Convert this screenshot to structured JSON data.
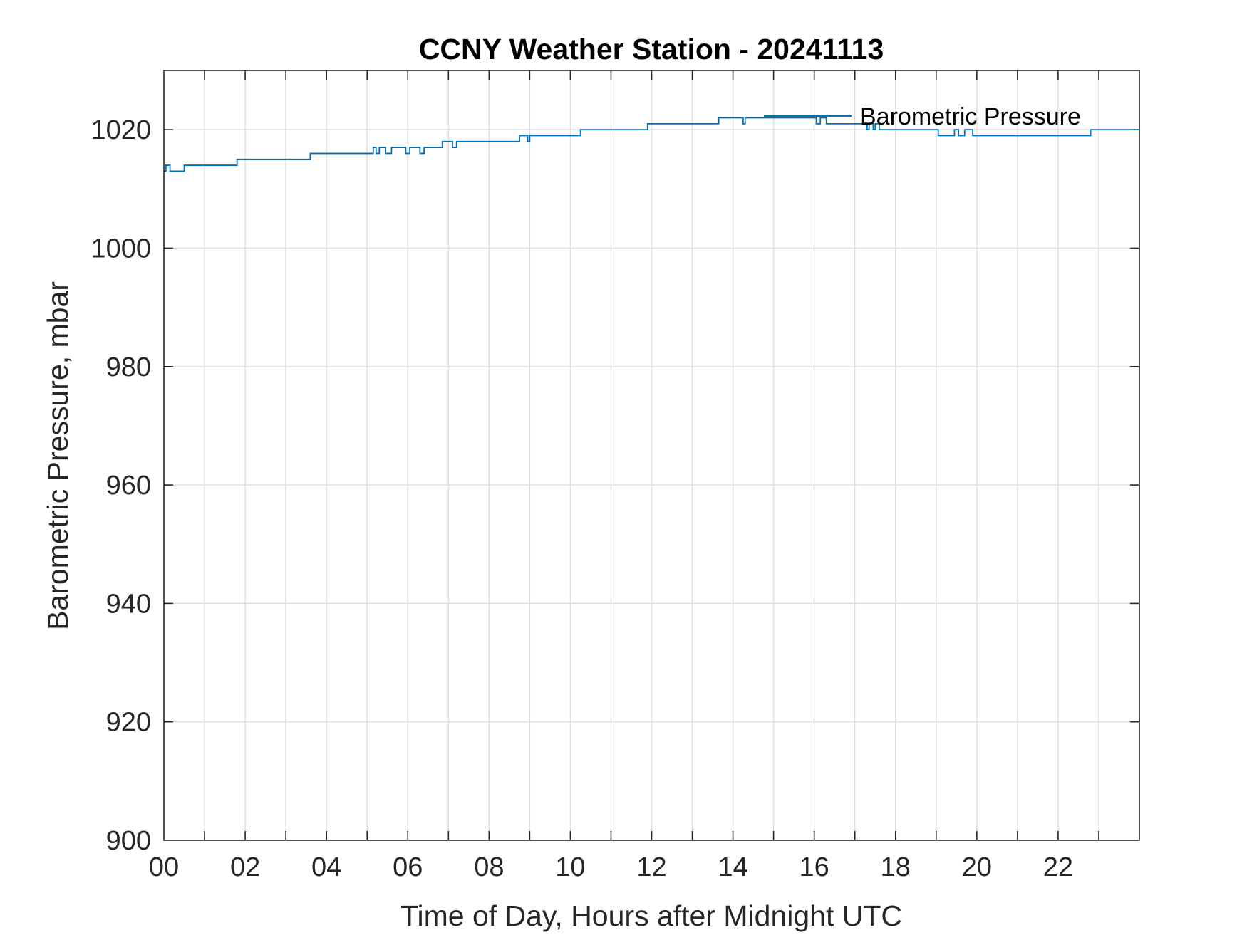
{
  "chart_data": {
    "type": "line",
    "title": "CCNY Weather Station - 20241113",
    "xlabel": "Time of Day, Hours after Midnight UTC",
    "ylabel": "Barometric Pressure, mbar",
    "xlim": [
      0,
      24
    ],
    "ylim": [
      900,
      1030
    ],
    "xticks": [
      0,
      2,
      4,
      6,
      8,
      10,
      12,
      14,
      16,
      18,
      20,
      22
    ],
    "xtick_labels": [
      "00",
      "02",
      "04",
      "06",
      "08",
      "10",
      "12",
      "14",
      "16",
      "18",
      "20",
      "22"
    ],
    "yticks": [
      900,
      920,
      940,
      960,
      980,
      1000,
      1020
    ],
    "ytick_labels": [
      "900",
      "920",
      "940",
      "960",
      "980",
      "1000",
      "1020"
    ],
    "grid": true,
    "legend_position": "top-right",
    "colors": {
      "series": "#0072bd",
      "grid": "#dedede",
      "axes": "#262626"
    },
    "series": [
      {
        "name": "Barometric Pressure",
        "line_style": "step",
        "x": [
          0,
          0.05,
          0.1,
          0.15,
          0.5,
          1.8,
          3.6,
          5.15,
          5.22,
          5.3,
          5.45,
          5.6,
          5.95,
          6.05,
          6.2,
          6.3,
          6.4,
          6.85,
          7.1,
          7.2,
          8.75,
          8.95,
          9.0,
          10.25,
          11.9,
          13.65,
          14.25,
          14.3,
          14.4,
          16.05,
          16.15,
          16.3,
          16.4,
          17.3,
          17.35,
          17.45,
          17.5,
          17.6,
          17.7,
          19.05,
          19.45,
          19.55,
          19.7,
          19.9,
          22.8
        ],
        "values": [
          1013,
          1014,
          1014,
          1013,
          1014,
          1015,
          1016,
          1017,
          1016,
          1017,
          1016,
          1017,
          1016,
          1017,
          1017,
          1016,
          1017,
          1018,
          1017,
          1018,
          1019,
          1018,
          1019,
          1020,
          1021,
          1022,
          1021,
          1022,
          1022,
          1021,
          1022,
          1021,
          1021,
          1020,
          1021,
          1020,
          1021,
          1020,
          1020,
          1019,
          1020,
          1019,
          1020,
          1019,
          1020
        ]
      }
    ]
  }
}
